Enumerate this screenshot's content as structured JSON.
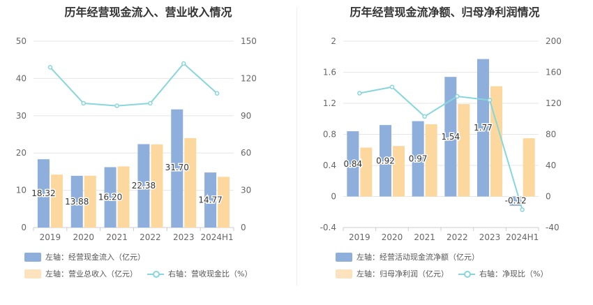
{
  "colors": {
    "bar1": "#8eaedb",
    "bar2": "#fcd89f",
    "line": "#86d6dc",
    "grid": "#e6e6e6",
    "axis_text": "#666666",
    "label_text": "#333333"
  },
  "chart_data": [
    {
      "type": "bar",
      "title": "历年经营现金流入、营业收入情况",
      "categories": [
        "2019",
        "2020",
        "2021",
        "2022",
        "2023",
        "2024H1"
      ],
      "left_axis": {
        "ylim": [
          0,
          50
        ],
        "ticks": [
          "0",
          "10",
          "20",
          "30",
          "40",
          "50"
        ]
      },
      "right_axis": {
        "ylim": [
          0,
          150
        ],
        "ticks": [
          "0",
          "30",
          "60",
          "90",
          "120",
          "150"
        ]
      },
      "series": [
        {
          "name": "左轴：经营现金流入（亿元）",
          "kind": "bar",
          "axis": "left",
          "values": [
            18.32,
            13.88,
            16.2,
            22.38,
            31.7,
            14.77
          ],
          "labels": [
            "18.32",
            "13.88",
            "16.20",
            "22.38",
            "31.70",
            "14.77"
          ]
        },
        {
          "name": "左轴：营业总收入（亿元）",
          "kind": "bar",
          "axis": "left",
          "values": [
            14.2,
            13.9,
            16.4,
            22.3,
            24.0,
            13.6
          ]
        },
        {
          "name": "右轴：营收现金比（%）",
          "kind": "line",
          "axis": "right",
          "values": [
            129,
            100,
            98,
            100,
            132,
            108
          ]
        }
      ],
      "grid": true,
      "legend": "bottom"
    },
    {
      "type": "bar",
      "title": "历年经营现金流净额、归母净利润情况",
      "categories": [
        "2019",
        "2020",
        "2021",
        "2022",
        "2023",
        "2024H1"
      ],
      "left_axis": {
        "ylim": [
          -0.4,
          2
        ],
        "ticks": [
          "-0.4",
          "0",
          "0.4",
          "0.8",
          "1.2",
          "1.6",
          "2"
        ]
      },
      "right_axis": {
        "ylim": [
          -40,
          200
        ],
        "ticks": [
          "-40",
          "0",
          "40",
          "80",
          "120",
          "160",
          "200"
        ]
      },
      "series": [
        {
          "name": "左轴：经营活动现金流净额（亿元）",
          "kind": "bar",
          "axis": "left",
          "values": [
            0.84,
            0.92,
            0.97,
            1.54,
            1.77,
            -0.12
          ],
          "labels": [
            "0.84",
            "0.92",
            "0.97",
            "1.54",
            "1.77",
            "-0.12"
          ]
        },
        {
          "name": "左轴：归母净利润（亿元）",
          "kind": "bar",
          "axis": "left",
          "values": [
            0.63,
            0.65,
            0.93,
            1.19,
            1.42,
            0.75
          ]
        },
        {
          "name": "右轴：净现比（%）",
          "kind": "line",
          "axis": "right",
          "values": [
            133,
            141,
            103,
            129,
            124,
            -17
          ]
        }
      ],
      "grid": true,
      "legend": "bottom"
    }
  ]
}
